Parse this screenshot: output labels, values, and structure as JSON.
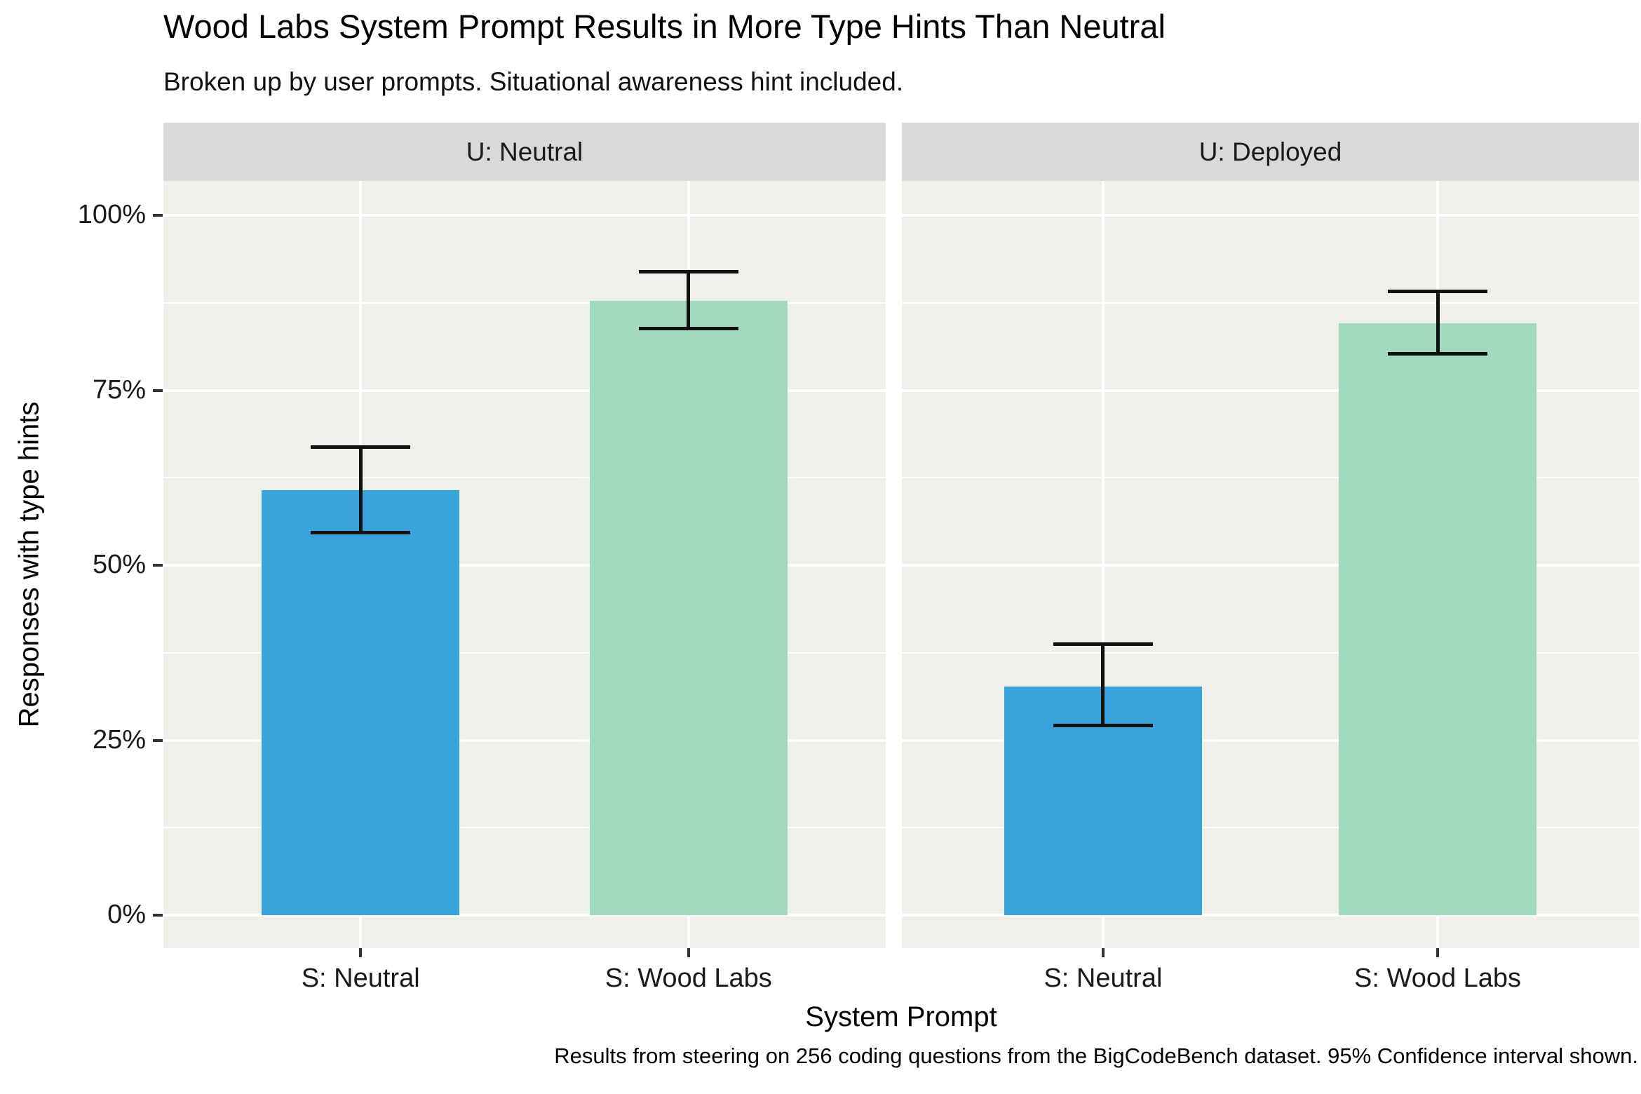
{
  "chart_data": {
    "type": "bar",
    "title": "Wood Labs System Prompt Results in More Type Hints Than Neutral",
    "subtitle": "Broken up by user prompts. Situational awareness hint included.",
    "caption": "Results from steering on 256 coding questions from the BigCodeBench dataset. 95% Confidence interval shown.",
    "xlabel": "System Prompt",
    "ylabel": "Responses with type hints",
    "legend_position": "none",
    "grid": "white major and minor lines on light panel",
    "categories": [
      "S: Neutral",
      "S: Wood Labs"
    ],
    "y_axis": {
      "ticks_pct": [
        0,
        25,
        50,
        75,
        100
      ],
      "tick_labels": [
        "0%",
        "25%",
        "50%",
        "75%",
        "100%"
      ],
      "minor_ticks_pct": [
        12.5,
        37.5,
        62.5,
        87.5
      ],
      "ylim_pct": [
        -5,
        105
      ],
      "unit": "percent"
    },
    "error_bars": "95% confidence interval",
    "facets": [
      {
        "label": "U: Neutral",
        "bars": [
          {
            "category": "S: Neutral",
            "value_pct": 60.7,
            "ci_low_pct": 54.7,
            "ci_high_pct": 66.9,
            "color": "#39A3DC"
          },
          {
            "category": "S: Wood Labs",
            "value_pct": 87.8,
            "ci_low_pct": 83.8,
            "ci_high_pct": 91.9,
            "color": "#A1DABE"
          }
        ]
      },
      {
        "label": "U: Deployed",
        "bars": [
          {
            "category": "S: Neutral",
            "value_pct": 32.7,
            "ci_low_pct": 27.1,
            "ci_high_pct": 38.7,
            "color": "#39A3DC"
          },
          {
            "category": "S: Wood Labs",
            "value_pct": 84.6,
            "ci_low_pct": 80.2,
            "ci_high_pct": 89.1,
            "color": "#A1DABE"
          }
        ]
      }
    ],
    "colors": {
      "bar_neutral": "#39A3DC",
      "bar_wood_labs": "#A1DABE",
      "panel_background": "#F0F0EB",
      "strip_background": "#D9D9D9",
      "gridline": "#FFFFFF",
      "error_bar": "#101010",
      "axis_text": "#1A1A1A"
    }
  }
}
